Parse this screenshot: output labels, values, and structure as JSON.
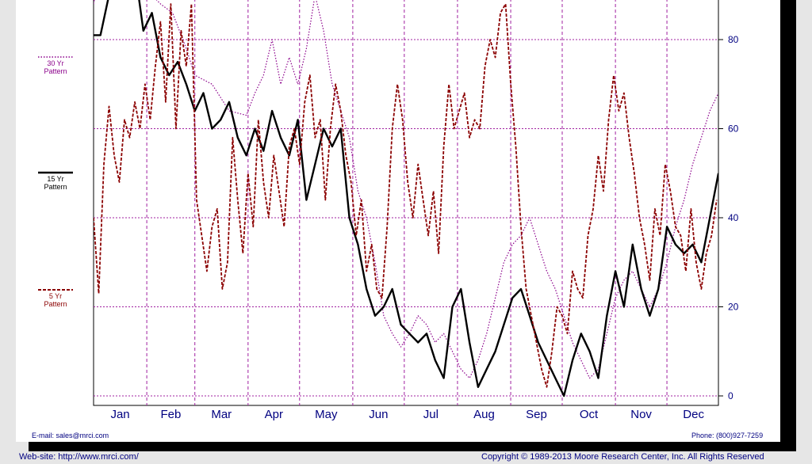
{
  "legend": {
    "yr30": {
      "line1": "30 Yr",
      "line2": "Pattern",
      "color": "#8b008b"
    },
    "yr15": {
      "line1": "15 Yr",
      "line2": "Pattern",
      "color": "#000000"
    },
    "yr5": {
      "line1": "5 Yr",
      "line2": "Pattern",
      "color": "#8b0000"
    }
  },
  "footer": {
    "email": "E-mail: sales@mrci.com",
    "phone": "Phone: (800)927-7259",
    "website": "Web-site: http://www.mrci.com/",
    "copyright": "Copyright © 1989-2013 Moore Research Center, Inc. All Rights Reserved"
  },
  "chart_data": {
    "type": "line",
    "title": "",
    "xlabel": "",
    "ylabel": "",
    "months": [
      "Jan",
      "Feb",
      "Mar",
      "Apr",
      "May",
      "Jun",
      "Jul",
      "Aug",
      "Sep",
      "Oct",
      "Nov",
      "Dec"
    ],
    "y_ticks": [
      0,
      20,
      40,
      60,
      80
    ],
    "ylim": [
      0,
      90
    ],
    "xlim": [
      1,
      365
    ],
    "grid": true,
    "legend_position": "left",
    "series": [
      {
        "name": "30 Yr Pattern",
        "color": "#8b008b",
        "style": "dotted",
        "x": [
          1,
          5,
          12,
          20,
          30,
          40,
          47,
          55,
          60,
          70,
          80,
          90,
          95,
          100,
          105,
          110,
          115,
          120,
          125,
          130,
          135,
          140,
          145,
          150,
          155,
          160,
          165,
          170,
          175,
          180,
          185,
          190,
          195,
          200,
          205,
          210,
          215,
          220,
          225,
          230,
          235,
          240,
          245,
          250,
          255,
          260,
          265,
          270,
          275,
          280,
          285,
          290,
          295,
          300,
          305,
          310,
          315,
          320,
          325,
          330,
          335,
          340,
          345,
          350,
          355,
          360,
          365
        ],
        "y": [
          88,
          96,
          98,
          96,
          92,
          88,
          86,
          78,
          72,
          70,
          64,
          63,
          68,
          72,
          80,
          70,
          76,
          70,
          78,
          90,
          82,
          70,
          64,
          58,
          46,
          40,
          30,
          18,
          14,
          11,
          14,
          18,
          16,
          12,
          14,
          10,
          6,
          4,
          8,
          14,
          22,
          30,
          34,
          36,
          40,
          34,
          28,
          24,
          18,
          12,
          8,
          4,
          6,
          14,
          22,
          26,
          28,
          24,
          20,
          24,
          30,
          38,
          44,
          52,
          58,
          64,
          68
        ]
      },
      {
        "name": "15 Yr Pattern",
        "color": "#000000",
        "style": "solid",
        "x": [
          1,
          5,
          10,
          15,
          20,
          25,
          30,
          35,
          40,
          45,
          50,
          55,
          60,
          65,
          70,
          75,
          80,
          85,
          90,
          95,
          100,
          105,
          110,
          115,
          120,
          125,
          130,
          135,
          140,
          145,
          150,
          155,
          160,
          165,
          170,
          175,
          180,
          185,
          190,
          195,
          200,
          205,
          210,
          215,
          220,
          225,
          230,
          235,
          240,
          245,
          250,
          255,
          260,
          265,
          270,
          275,
          280,
          285,
          290,
          295,
          300,
          305,
          310,
          315,
          320,
          325,
          330,
          335,
          340,
          345,
          350,
          355,
          360,
          365
        ],
        "y": [
          81,
          81,
          90,
          95,
          93,
          96,
          82,
          86,
          76,
          72,
          75,
          70,
          64,
          68,
          60,
          62,
          66,
          58,
          54,
          60,
          55,
          64,
          58,
          54,
          62,
          44,
          52,
          60,
          56,
          60,
          40,
          34,
          24,
          18,
          20,
          24,
          16,
          14,
          12,
          14,
          8,
          4,
          20,
          24,
          12,
          2,
          6,
          10,
          16,
          22,
          24,
          18,
          12,
          8,
          4,
          0,
          8,
          14,
          10,
          4,
          18,
          28,
          20,
          34,
          24,
          18,
          24,
          38,
          34,
          32,
          34,
          30,
          40,
          50
        ]
      },
      {
        "name": "5 Yr Pattern",
        "color": "#8b0000",
        "style": "dashed",
        "x": [
          1,
          4,
          7,
          10,
          13,
          16,
          19,
          22,
          25,
          28,
          31,
          34,
          37,
          40,
          43,
          46,
          49,
          52,
          55,
          58,
          61,
          64,
          67,
          70,
          73,
          76,
          79,
          82,
          85,
          88,
          91,
          94,
          97,
          100,
          103,
          106,
          109,
          112,
          115,
          118,
          121,
          124,
          127,
          130,
          133,
          136,
          139,
          142,
          145,
          148,
          151,
          154,
          157,
          160,
          163,
          166,
          169,
          172,
          175,
          178,
          181,
          184,
          187,
          190,
          193,
          196,
          199,
          202,
          205,
          208,
          211,
          214,
          217,
          220,
          223,
          226,
          229,
          232,
          235,
          238,
          241,
          244,
          247,
          250,
          253,
          256,
          259,
          262,
          265,
          268,
          271,
          274,
          277,
          280,
          283,
          286,
          289,
          292,
          295,
          298,
          301,
          304,
          307,
          310,
          313,
          316,
          319,
          322,
          325,
          328,
          331,
          334,
          337,
          340,
          343,
          346,
          349,
          352,
          355,
          358,
          361,
          364
        ],
        "y": [
          40,
          23,
          52,
          65,
          54,
          48,
          62,
          58,
          66,
          60,
          70,
          62,
          74,
          84,
          66,
          88,
          60,
          82,
          74,
          88,
          44,
          36,
          28,
          38,
          42,
          24,
          30,
          58,
          44,
          32,
          50,
          38,
          62,
          48,
          40,
          54,
          46,
          38,
          56,
          60,
          52,
          66,
          72,
          58,
          62,
          44,
          60,
          70,
          64,
          54,
          48,
          36,
          44,
          28,
          34,
          24,
          22,
          38,
          60,
          70,
          62,
          48,
          40,
          52,
          44,
          36,
          46,
          32,
          56,
          70,
          60,
          64,
          68,
          58,
          62,
          60,
          74,
          80,
          76,
          86,
          88,
          70,
          56,
          38,
          24,
          18,
          12,
          6,
          2,
          10,
          20,
          18,
          14,
          28,
          24,
          22,
          36,
          42,
          54,
          46,
          62,
          72,
          64,
          68,
          58,
          50,
          40,
          34,
          26,
          42,
          36,
          52,
          46,
          38,
          36,
          28,
          42,
          30,
          24,
          32,
          36,
          44
        ]
      }
    ]
  }
}
